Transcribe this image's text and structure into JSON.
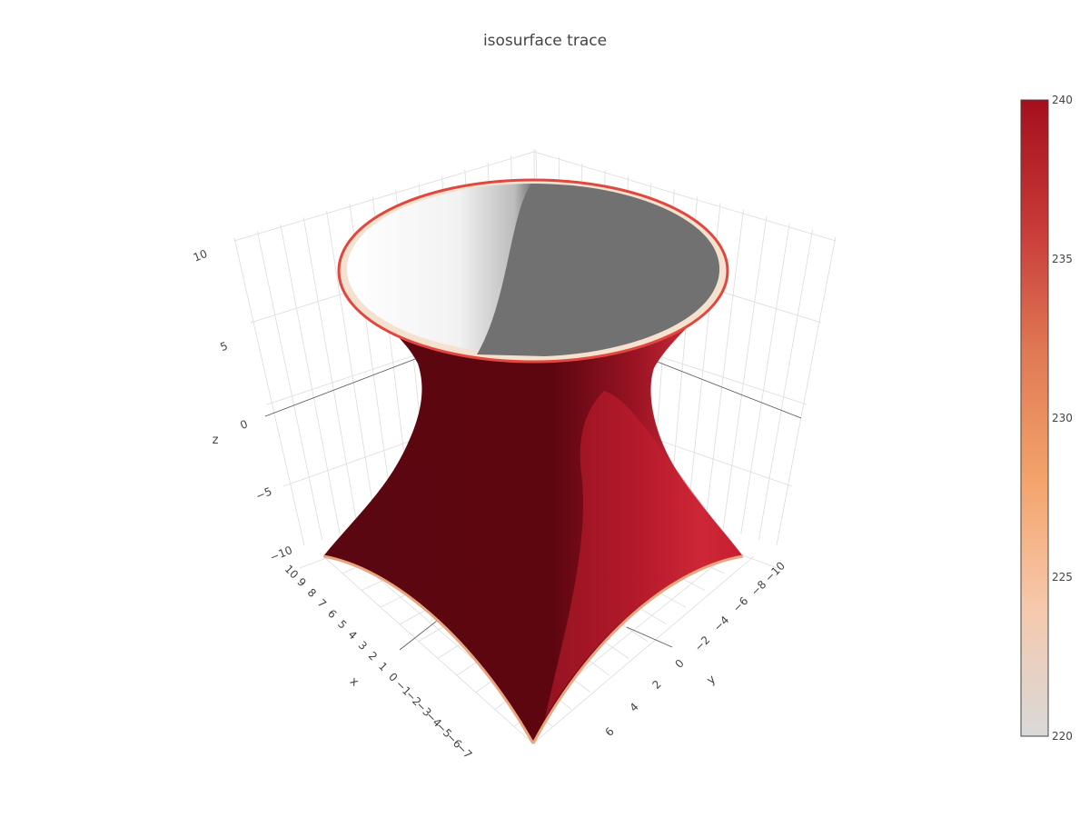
{
  "chart_data": {
    "type": "isosurface",
    "title": "isosurface trace",
    "axes": {
      "x": {
        "label": "x",
        "ticks": [
          "−10",
          "10",
          "9",
          "8",
          "7",
          "6",
          "5",
          "4",
          "3",
          "2",
          "1",
          "0",
          "−1",
          "−2",
          "−3",
          "−4",
          "−5",
          "−6",
          "−7"
        ]
      },
      "y": {
        "label": "y",
        "ticks": [
          "−10",
          "−8",
          "−6",
          "−4",
          "−2",
          "0",
          "2",
          "4",
          "6"
        ]
      },
      "z": {
        "label": "z",
        "ticks": [
          "10",
          "5",
          "0",
          "−5",
          "−10"
        ]
      }
    },
    "isosurface": {
      "shape": "hyperboloid of one sheet (waist narrowing toward the middle)",
      "isomin": 220,
      "isomax": 240
    },
    "colorbar": {
      "colorscale": "RdBu-reversed (grey to red)",
      "min": 220,
      "max": 240,
      "ticks": [
        "240",
        "235",
        "230",
        "225",
        "220"
      ],
      "colors": [
        "#dddddd",
        "#f7c4a6",
        "#f4a261",
        "#e07b53",
        "#cc3b3b",
        "#a50f15"
      ]
    },
    "grid": true,
    "legend": "none"
  }
}
